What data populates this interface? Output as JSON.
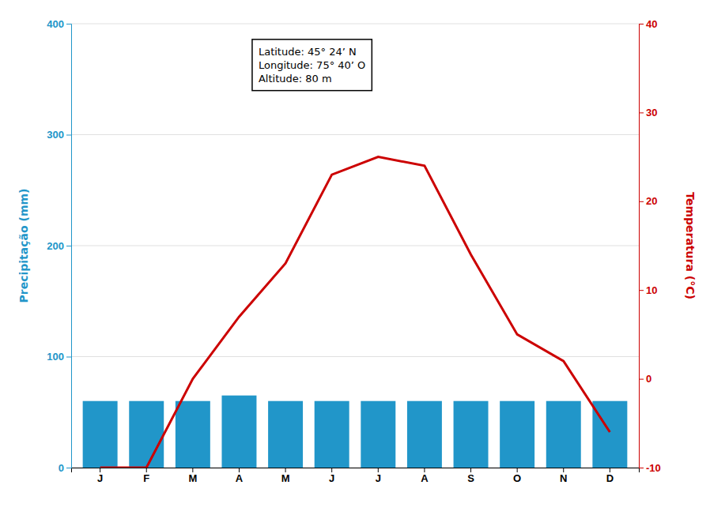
{
  "chart_data": {
    "type": "bar",
    "categories": [
      "J",
      "F",
      "M",
      "A",
      "M",
      "J",
      "J",
      "A",
      "S",
      "O",
      "N",
      "D"
    ],
    "series": [
      {
        "type": "bar",
        "color": "#2196C9",
        "values": [
          60,
          60,
          60,
          65,
          60,
          60,
          60,
          60,
          60,
          60,
          60,
          60
        ]
      },
      {
        "type": "line",
        "axis": "y2",
        "color": "#CC0000",
        "values": [
          -10,
          -10,
          0,
          7,
          13,
          23,
          25,
          24,
          14,
          5,
          2,
          -6
        ]
      }
    ],
    "ylabel": "Precipitação (mm)",
    "y2label": "Temperatura (°C)",
    "ylim": [
      0,
      400
    ],
    "yticks": [
      0,
      100,
      200,
      300,
      400
    ],
    "y2lim": [
      -10,
      40
    ],
    "y2ticks": [
      -10,
      0,
      10,
      20,
      30,
      40
    ],
    "grid": true,
    "annotation": "Latitude: 45° 24’ N\nLongitude: 75° 40’ O\nAltitude: 80 m"
  }
}
